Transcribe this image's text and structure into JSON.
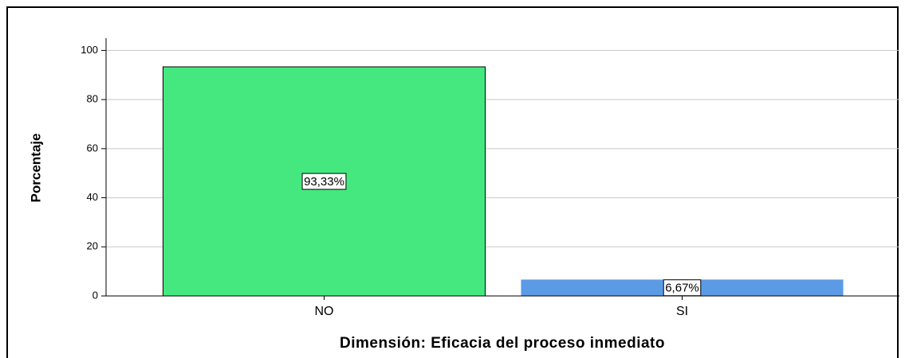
{
  "chart_data": {
    "type": "bar",
    "xlabel": "Dimensión: Eficacia del proceso inmediato",
    "ylabel": "Porcentaje",
    "categories": [
      "NO",
      "SI"
    ],
    "values": [
      93.33,
      6.67
    ],
    "value_labels": [
      "93,33%",
      "6,67%"
    ],
    "colors": [
      "#44e87f",
      "#5b9be6"
    ],
    "ylim": [
      0,
      105
    ],
    "yticks": [
      0,
      20,
      40,
      60,
      80,
      100
    ],
    "grid": true
  }
}
